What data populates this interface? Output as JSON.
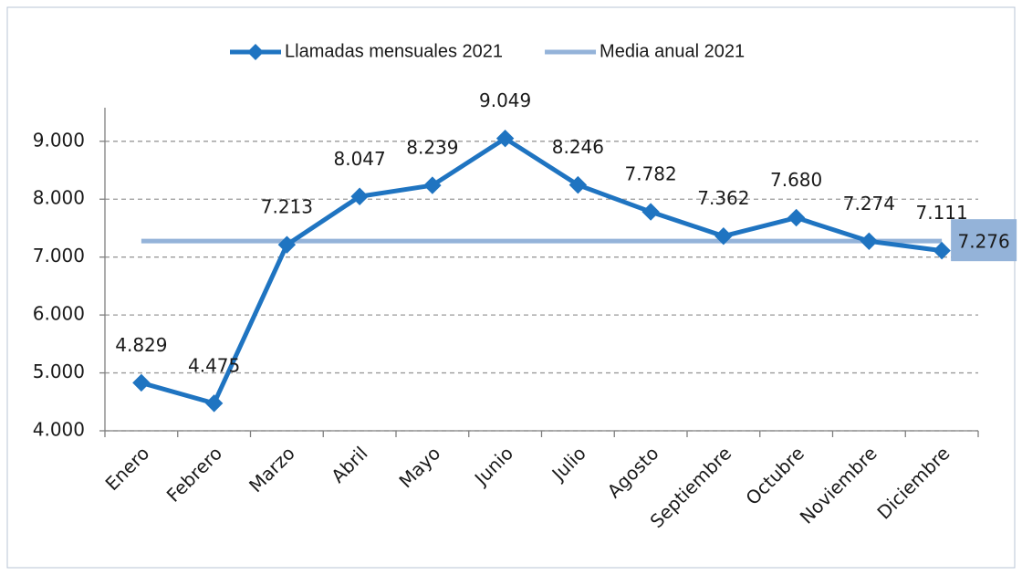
{
  "chart_data": {
    "type": "line",
    "categories": [
      "Enero",
      "Febrero",
      "Marzo",
      "Abril",
      "Mayo",
      "Junio",
      "Julio",
      "Agosto",
      "Septiembre",
      "Octubre",
      "Noviembre",
      "Diciembre"
    ],
    "series": [
      {
        "name": "Llamadas mensuales 2021",
        "color": "#1f74c1",
        "values": [
          4829,
          4475,
          7213,
          8047,
          8239,
          9049,
          8246,
          7782,
          7362,
          7680,
          7274,
          7111
        ],
        "value_labels": [
          "4.829",
          "4.475",
          "7.213",
          "8.047",
          "8.239",
          "9.049",
          "8.246",
          "7.782",
          "7.362",
          "7.680",
          "7.274",
          "7.111"
        ]
      },
      {
        "name": "Media anual 2021",
        "color": "#94b3d9",
        "values": [
          7276,
          7276,
          7276,
          7276,
          7276,
          7276,
          7276,
          7276,
          7276,
          7276,
          7276,
          7276
        ],
        "value_labels": [
          null,
          null,
          null,
          null,
          null,
          null,
          null,
          null,
          null,
          null,
          null,
          "7.276"
        ]
      }
    ],
    "ylim": [
      4000,
      9580
    ],
    "yticks": [
      {
        "value": 4000,
        "label": "4.000"
      },
      {
        "value": 5000,
        "label": "5.000"
      },
      {
        "value": 6000,
        "label": "6.000"
      },
      {
        "value": 7000,
        "label": "7.000"
      },
      {
        "value": 8000,
        "label": "8.000"
      },
      {
        "value": 9000,
        "label": "9.000"
      }
    ],
    "grid": true,
    "legend": "top"
  }
}
